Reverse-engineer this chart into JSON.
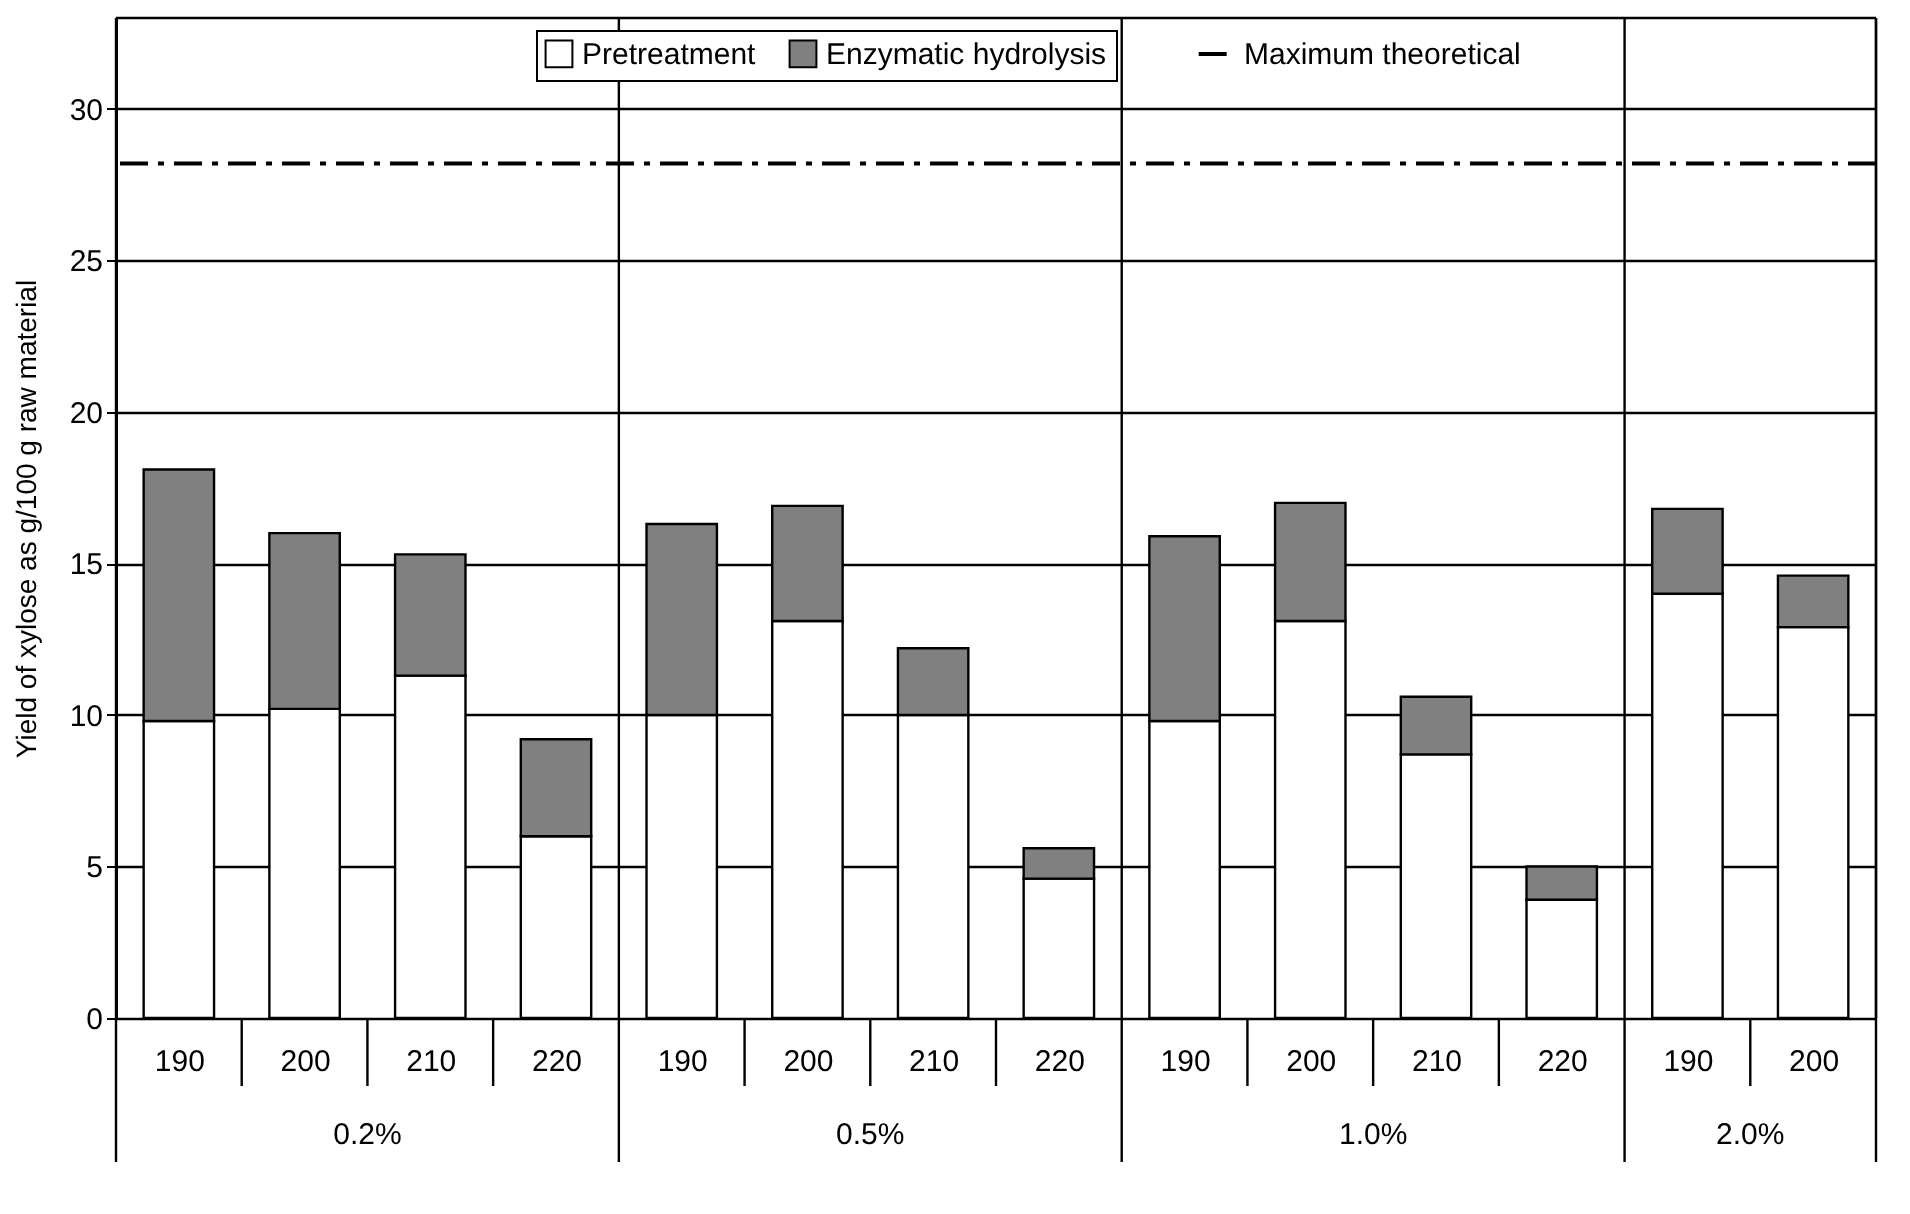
{
  "chart_data": {
    "type": "bar",
    "stacked": true,
    "ylabel": "Yield of xylose as g/100 g raw material",
    "categories": [
      "190",
      "200",
      "210",
      "220",
      "190",
      "200",
      "210",
      "220",
      "190",
      "200",
      "210",
      "220",
      "190",
      "200"
    ],
    "series": [
      {
        "name": "Pretreatment",
        "color": "#ffffff",
        "values": [
          9.8,
          10.2,
          11.3,
          6.0,
          10.0,
          13.1,
          10.0,
          4.6,
          9.8,
          13.1,
          8.7,
          3.9,
          14.0,
          12.9
        ]
      },
      {
        "name": "Enzymatic hydrolysis",
        "color": "#808080",
        "values": [
          8.3,
          5.8,
          4.0,
          3.2,
          6.3,
          3.8,
          2.2,
          1.0,
          6.1,
          3.9,
          1.9,
          1.1,
          2.8,
          1.7
        ]
      }
    ],
    "ref_lines": [
      {
        "axis": "y",
        "value": 28.2,
        "label": "Maximum theoretical",
        "line_style": "dashed",
        "color": "#000000"
      }
    ],
    "annotations": [
      "0.2%",
      "0.5%",
      "1.0%",
      "2.0%"
    ],
    "ylim": [
      0,
      33
    ],
    "yticks": [
      0,
      5,
      10,
      15,
      20,
      25,
      30
    ],
    "grid": "y",
    "legend": "top"
  }
}
